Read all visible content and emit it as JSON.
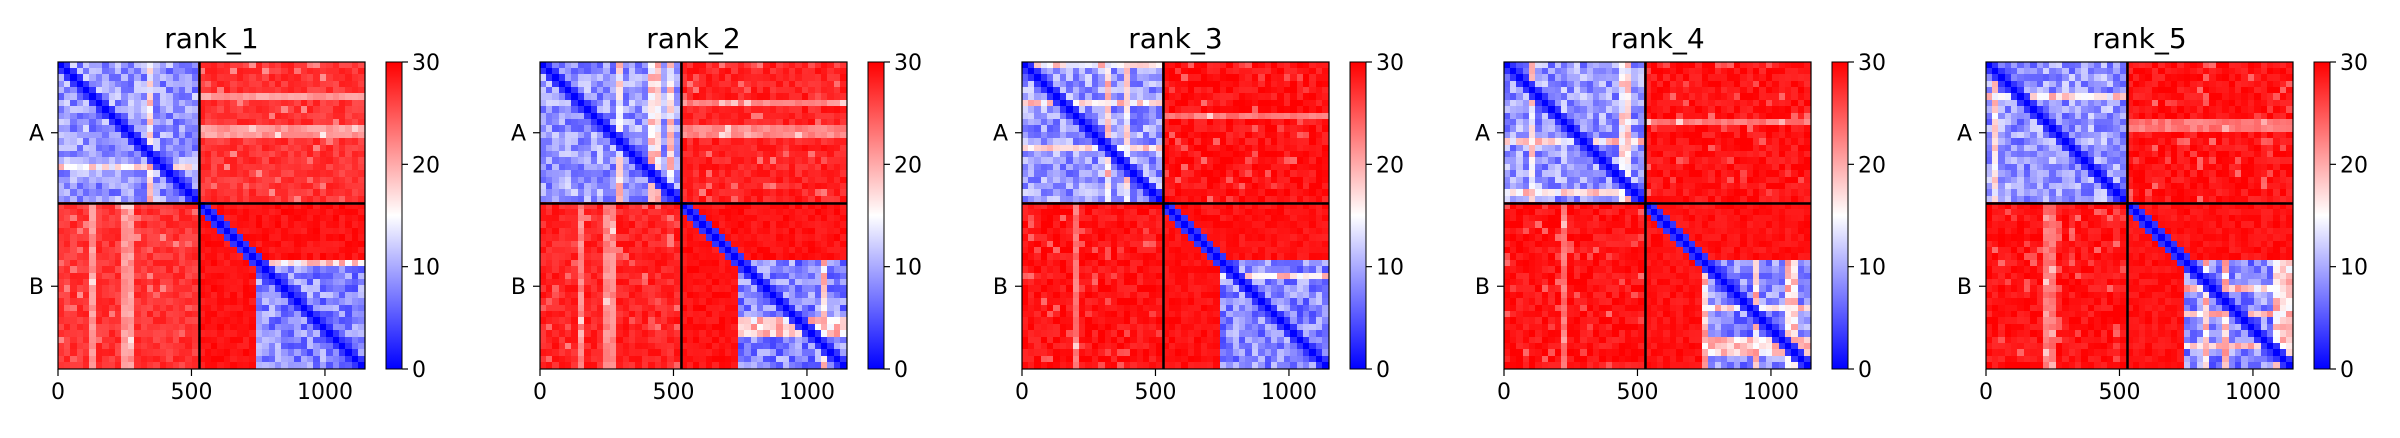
{
  "chart_data": [
    {
      "type": "heatmap",
      "title": "rank_1",
      "chains": [
        "A",
        "B"
      ],
      "chain_boundary": 530,
      "extent": [
        0,
        1150
      ],
      "xticks": [
        0,
        500,
        1000
      ],
      "xtick_labels": [
        "0",
        "500",
        "1000"
      ],
      "colorbar": {
        "min": 0,
        "max": 30,
        "ticks": [
          0,
          10,
          20,
          30
        ],
        "tick_labels": [
          "0",
          "10",
          "20",
          "30"
        ],
        "colormap": "bwr"
      },
      "domain_breaks": [
        750
      ],
      "offdiag_uncertain_columns": [
        130,
        265,
        800,
        950,
        1050
      ],
      "intra_A_level": 9,
      "intra_B_level": 8,
      "inter_chain_level": 27
    },
    {
      "type": "heatmap",
      "title": "rank_2",
      "chains": [
        "A",
        "B"
      ],
      "chain_boundary": 530,
      "extent": [
        0,
        1150
      ],
      "xticks": [
        0,
        500,
        1000
      ],
      "xtick_labels": [
        "0",
        "500",
        "1000"
      ],
      "colorbar": {
        "min": 0,
        "max": 30,
        "ticks": [
          0,
          10,
          20,
          30
        ],
        "tick_labels": [
          "0",
          "10",
          "20",
          "30"
        ],
        "colormap": "bwr"
      },
      "domain_breaks": [
        750
      ],
      "offdiag_uncertain_columns": [
        150,
        265,
        850,
        1000
      ],
      "intra_A_level": 9,
      "intra_B_level": 8,
      "inter_chain_level": 28
    },
    {
      "type": "heatmap",
      "title": "rank_3",
      "chains": [
        "A",
        "B"
      ],
      "chain_boundary": 530,
      "extent": [
        0,
        1150
      ],
      "xticks": [
        0,
        500,
        1000
      ],
      "xtick_labels": [
        "0",
        "500",
        "1000"
      ],
      "colorbar": {
        "min": 0,
        "max": 30,
        "ticks": [
          0,
          10,
          20,
          30
        ],
        "tick_labels": [
          "0",
          "10",
          "20",
          "30"
        ],
        "colormap": "bwr"
      },
      "domain_breaks": [
        750
      ],
      "offdiag_uncertain_columns": [
        200,
        900
      ],
      "intra_A_level": 9,
      "intra_B_level": 8,
      "inter_chain_level": 29
    },
    {
      "type": "heatmap",
      "title": "rank_4",
      "chains": [
        "A",
        "B"
      ],
      "chain_boundary": 530,
      "extent": [
        0,
        1150
      ],
      "xticks": [
        0,
        500,
        1000
      ],
      "xtick_labels": [
        "0",
        "500",
        "1000"
      ],
      "colorbar": {
        "min": 0,
        "max": 30,
        "ticks": [
          0,
          10,
          20,
          30
        ],
        "tick_labels": [
          "0",
          "10",
          "20",
          "30"
        ],
        "colormap": "bwr"
      },
      "domain_breaks": [
        750
      ],
      "offdiag_uncertain_columns": [
        220,
        880
      ],
      "intra_A_level": 9,
      "intra_B_level": 8,
      "inter_chain_level": 29
    },
    {
      "type": "heatmap",
      "title": "rank_5",
      "chains": [
        "A",
        "B"
      ],
      "chain_boundary": 530,
      "extent": [
        0,
        1150
      ],
      "xticks": [
        0,
        500,
        1000
      ],
      "xtick_labels": [
        "0",
        "500",
        "1000"
      ],
      "colorbar": {
        "min": 0,
        "max": 30,
        "ticks": [
          0,
          10,
          20,
          30
        ],
        "tick_labels": [
          "0",
          "10",
          "20",
          "30"
        ],
        "colormap": "bwr"
      },
      "domain_breaks": [
        750
      ],
      "offdiag_uncertain_columns": [
        240,
        900
      ],
      "intra_A_level": 9,
      "intra_B_level": 8,
      "inter_chain_level": 29
    }
  ]
}
